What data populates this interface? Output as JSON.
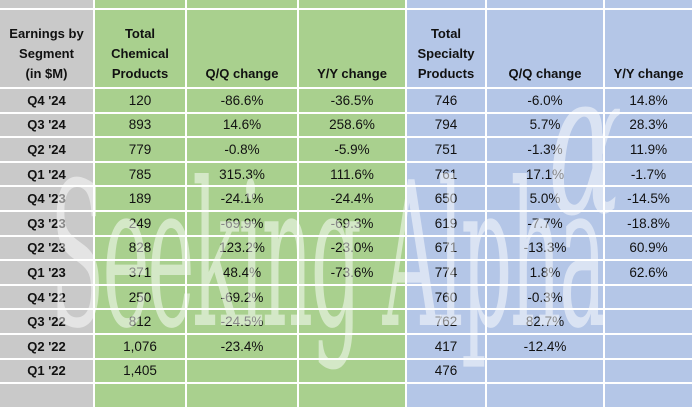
{
  "watermark": {
    "text": "Seeking Alpha",
    "alpha_symbol": "α"
  },
  "colors": {
    "row_header_bg": "#c9c9c9",
    "chemical_bg": "#a9d08e",
    "specialty_bg": "#b4c6e7",
    "gridline": "#ffffff"
  },
  "header": {
    "corner_lines": [
      "Earnings by",
      "Segment",
      "(in $M)"
    ],
    "chemical_total_lines": [
      "Total",
      "Chemical",
      "Products"
    ],
    "chemical_qq": "Q/Q change",
    "chemical_yy": "Y/Y change",
    "specialty_total_lines": [
      "Total",
      "Specialty",
      "Products"
    ],
    "specialty_qq": "Q/Q change",
    "specialty_yy": "Y/Y change"
  },
  "rows": [
    {
      "quarter": "Q4 '24",
      "chem_total": "120",
      "chem_qq": "-86.6%",
      "chem_yy": "-36.5%",
      "spec_total": "746",
      "spec_qq": "-6.0%",
      "spec_yy": "14.8%"
    },
    {
      "quarter": "Q3 '24",
      "chem_total": "893",
      "chem_qq": "14.6%",
      "chem_yy": "258.6%",
      "spec_total": "794",
      "spec_qq": "5.7%",
      "spec_yy": "28.3%"
    },
    {
      "quarter": "Q2 '24",
      "chem_total": "779",
      "chem_qq": "-0.8%",
      "chem_yy": "-5.9%",
      "spec_total": "751",
      "spec_qq": "-1.3%",
      "spec_yy": "11.9%"
    },
    {
      "quarter": "Q1 '24",
      "chem_total": "785",
      "chem_qq": "315.3%",
      "chem_yy": "111.6%",
      "spec_total": "761",
      "spec_qq": "17.1%",
      "spec_yy": "-1.7%"
    },
    {
      "quarter": "Q4 '23",
      "chem_total": "189",
      "chem_qq": "-24.1%",
      "chem_yy": "-24.4%",
      "spec_total": "650",
      "spec_qq": "5.0%",
      "spec_yy": "-14.5%"
    },
    {
      "quarter": "Q3 '23",
      "chem_total": "249",
      "chem_qq": "-69.9%",
      "chem_yy": "-69.3%",
      "spec_total": "619",
      "spec_qq": "-7.7%",
      "spec_yy": "-18.8%"
    },
    {
      "quarter": "Q2 '23",
      "chem_total": "828",
      "chem_qq": "123.2%",
      "chem_yy": "-23.0%",
      "spec_total": "671",
      "spec_qq": "-13.3%",
      "spec_yy": "60.9%"
    },
    {
      "quarter": "Q1 '23",
      "chem_total": "371",
      "chem_qq": "48.4%",
      "chem_yy": "-73.6%",
      "spec_total": "774",
      "spec_qq": "1.8%",
      "spec_yy": "62.6%"
    },
    {
      "quarter": "Q4 '22",
      "chem_total": "250",
      "chem_qq": "-69.2%",
      "chem_yy": "",
      "spec_total": "760",
      "spec_qq": "-0.3%",
      "spec_yy": ""
    },
    {
      "quarter": "Q3 '22",
      "chem_total": "812",
      "chem_qq": "-24.5%",
      "chem_yy": "",
      "spec_total": "762",
      "spec_qq": "82.7%",
      "spec_yy": ""
    },
    {
      "quarter": "Q2 '22",
      "chem_total": "1,076",
      "chem_qq": "-23.4%",
      "chem_yy": "",
      "spec_total": "417",
      "spec_qq": "-12.4%",
      "spec_yy": ""
    },
    {
      "quarter": "Q1 '22",
      "chem_total": "1,405",
      "chem_qq": "",
      "chem_yy": "",
      "spec_total": "476",
      "spec_qq": "",
      "spec_yy": ""
    },
    {
      "quarter": "",
      "chem_total": "",
      "chem_qq": "",
      "chem_yy": "",
      "spec_total": "",
      "spec_qq": "",
      "spec_yy": ""
    }
  ],
  "chart_data": {
    "type": "table",
    "title": "Earnings by Segment (in $M)",
    "row_header": "Quarter",
    "columns": [
      "Total Chemical Products",
      "Q/Q change",
      "Y/Y change",
      "Total Specialty Products",
      "Q/Q change",
      "Y/Y change"
    ],
    "rows": [
      {
        "quarter": "Q4 '24",
        "chemical_total": 120,
        "chemical_qq_pct": -86.6,
        "chemical_yy_pct": -36.5,
        "specialty_total": 746,
        "specialty_qq_pct": -6.0,
        "specialty_yy_pct": 14.8
      },
      {
        "quarter": "Q3 '24",
        "chemical_total": 893,
        "chemical_qq_pct": 14.6,
        "chemical_yy_pct": 258.6,
        "specialty_total": 794,
        "specialty_qq_pct": 5.7,
        "specialty_yy_pct": 28.3
      },
      {
        "quarter": "Q2 '24",
        "chemical_total": 779,
        "chemical_qq_pct": -0.8,
        "chemical_yy_pct": -5.9,
        "specialty_total": 751,
        "specialty_qq_pct": -1.3,
        "specialty_yy_pct": 11.9
      },
      {
        "quarter": "Q1 '24",
        "chemical_total": 785,
        "chemical_qq_pct": 315.3,
        "chemical_yy_pct": 111.6,
        "specialty_total": 761,
        "specialty_qq_pct": 17.1,
        "specialty_yy_pct": -1.7
      },
      {
        "quarter": "Q4 '23",
        "chemical_total": 189,
        "chemical_qq_pct": -24.1,
        "chemical_yy_pct": -24.4,
        "specialty_total": 650,
        "specialty_qq_pct": 5.0,
        "specialty_yy_pct": -14.5
      },
      {
        "quarter": "Q3 '23",
        "chemical_total": 249,
        "chemical_qq_pct": -69.9,
        "chemical_yy_pct": -69.3,
        "specialty_total": 619,
        "specialty_qq_pct": -7.7,
        "specialty_yy_pct": -18.8
      },
      {
        "quarter": "Q2 '23",
        "chemical_total": 828,
        "chemical_qq_pct": 123.2,
        "chemical_yy_pct": -23.0,
        "specialty_total": 671,
        "specialty_qq_pct": -13.3,
        "specialty_yy_pct": 60.9
      },
      {
        "quarter": "Q1 '23",
        "chemical_total": 371,
        "chemical_qq_pct": 48.4,
        "chemical_yy_pct": -73.6,
        "specialty_total": 774,
        "specialty_qq_pct": 1.8,
        "specialty_yy_pct": 62.6
      },
      {
        "quarter": "Q4 '22",
        "chemical_total": 250,
        "chemical_qq_pct": -69.2,
        "chemical_yy_pct": null,
        "specialty_total": 760,
        "specialty_qq_pct": -0.3,
        "specialty_yy_pct": null
      },
      {
        "quarter": "Q3 '22",
        "chemical_total": 812,
        "chemical_qq_pct": -24.5,
        "chemical_yy_pct": null,
        "specialty_total": 762,
        "specialty_qq_pct": 82.7,
        "specialty_yy_pct": null
      },
      {
        "quarter": "Q2 '22",
        "chemical_total": 1076,
        "chemical_qq_pct": -23.4,
        "chemical_yy_pct": null,
        "specialty_total": 417,
        "specialty_qq_pct": -12.4,
        "specialty_yy_pct": null
      },
      {
        "quarter": "Q1 '22",
        "chemical_total": 1405,
        "chemical_qq_pct": null,
        "chemical_yy_pct": null,
        "specialty_total": 476,
        "specialty_qq_pct": null,
        "specialty_yy_pct": null
      }
    ]
  }
}
